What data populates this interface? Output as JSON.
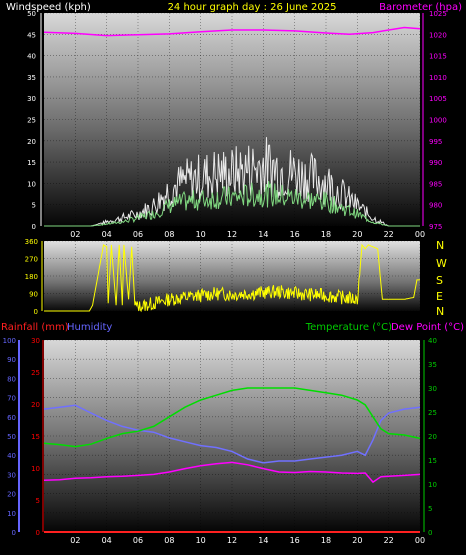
{
  "header": {
    "windspeed_label": "Windspeed (kph)",
    "title": "24 hour graph day : 26 June 2025",
    "barometer_label": "Barometer (hpa)"
  },
  "direction_labels": [
    "N",
    "W",
    "S",
    "E",
    "N"
  ],
  "bottom_header": {
    "rainfall_label": "Rainfall (mm)",
    "humidity_label": "Humidity",
    "temperature_label": "Temperature (°C)",
    "dewpoint_label": "Dew Point (°C)"
  },
  "colors": {
    "wind_gust": "#e8e8e8",
    "wind_avg": "#80d880",
    "barometer": "#ff00ff",
    "direction": "#ffff00",
    "rainfall": "#ff2020",
    "humidity": "#7070ff",
    "temperature": "#00dd00",
    "dewpoint": "#ff00ff",
    "rain_axis": "#ff0000",
    "humidity_axis": "#6666ff",
    "temp_axis": "#00cc00"
  },
  "chart_data": [
    {
      "type": "area",
      "id": "wind_baro",
      "title": "24 hour graph day : 26 June 2025",
      "x_ticks": [
        "02",
        "04",
        "06",
        "08",
        "10",
        "12",
        "14",
        "16",
        "18",
        "20",
        "22",
        "00"
      ],
      "y_left": {
        "label": "Windspeed (kph)",
        "ticks": [
          0,
          5,
          10,
          15,
          20,
          25,
          30,
          35,
          40,
          45,
          50
        ],
        "range": [
          0,
          50
        ]
      },
      "y_right": {
        "label": "Barometer (hpa)",
        "ticks": [
          975,
          980,
          985,
          990,
          995,
          1000,
          1005,
          1010,
          1015,
          1020,
          1025
        ],
        "range": [
          975,
          1025
        ]
      },
      "series": [
        {
          "name": "Wind gust",
          "x": [
            0,
            3,
            4,
            5,
            6,
            7,
            8,
            9,
            10,
            11,
            12,
            13,
            14,
            15,
            16,
            17,
            18,
            19,
            20,
            21,
            22,
            24
          ],
          "y": [
            0,
            0,
            1,
            2,
            3,
            5,
            9,
            11,
            12,
            13,
            13,
            14,
            15,
            14,
            13,
            12,
            11,
            8,
            5,
            2,
            0,
            0
          ]
        },
        {
          "name": "Wind average",
          "x": [
            0,
            3,
            4,
            5,
            6,
            7,
            8,
            9,
            10,
            11,
            12,
            13,
            14,
            15,
            16,
            17,
            18,
            19,
            20,
            21,
            22,
            24
          ],
          "y": [
            0,
            0,
            0.5,
            1,
            2,
            3,
            5,
            6,
            6.5,
            7,
            7,
            7.5,
            8,
            7.5,
            7,
            6.5,
            6,
            4.5,
            3,
            1,
            0,
            0
          ]
        },
        {
          "name": "Barometer",
          "x": [
            0,
            2,
            4,
            6,
            8,
            10,
            12,
            14,
            16,
            18,
            19.5,
            21,
            22,
            23,
            24
          ],
          "y": [
            1020.5,
            1020.2,
            1019.7,
            1019.9,
            1020.1,
            1020.6,
            1021.0,
            1021.0,
            1020.8,
            1020.3,
            1020.0,
            1020.4,
            1021.0,
            1021.6,
            1021.3
          ]
        }
      ]
    },
    {
      "type": "line",
      "id": "direction",
      "x_ticks": [
        "02",
        "04",
        "06",
        "08",
        "10",
        "12",
        "14",
        "16",
        "18",
        "20",
        "22",
        "00"
      ],
      "y_ticks": [
        0,
        90,
        180,
        270,
        360
      ],
      "y_range": [
        0,
        360
      ],
      "series": [
        {
          "name": "Wind direction",
          "x": [
            0,
            1,
            2,
            2.9,
            3.1,
            3.8,
            4.0,
            4.1,
            4.3,
            4.6,
            4.8,
            5.0,
            5.1,
            5.4,
            5.6,
            5.8,
            6.0,
            7.0,
            8.0,
            9.0,
            10.0,
            11.0,
            12.0,
            13.0,
            14.0,
            15.0,
            16.0,
            17.0,
            18.0,
            19.0,
            20.0,
            20.3,
            20.5,
            20.7,
            21.0,
            21.3,
            21.6,
            22.0,
            23.0,
            23.6,
            23.8,
            24.0
          ],
          "y": [
            0,
            0,
            0,
            0,
            30,
            340,
            330,
            40,
            340,
            30,
            340,
            30,
            340,
            60,
            330,
            30,
            20,
            40,
            60,
            70,
            80,
            90,
            85,
            90,
            95,
            100,
            90,
            85,
            80,
            70,
            60,
            340,
            320,
            340,
            330,
            320,
            60,
            60,
            60,
            70,
            160,
            160
          ]
        }
      ]
    },
    {
      "type": "line",
      "id": "temp_hum_rain",
      "x_ticks": [
        "02",
        "04",
        "06",
        "08",
        "10",
        "12",
        "14",
        "16",
        "18",
        "20",
        "22",
        "00"
      ],
      "y_left_outer": {
        "label": "Humidity",
        "ticks": [
          0,
          10,
          20,
          30,
          40,
          50,
          60,
          70,
          80,
          90,
          100
        ],
        "range": [
          0,
          100
        ]
      },
      "y_left_inner": {
        "label": "Rainfall (mm)",
        "ticks": [
          0,
          5,
          10,
          15,
          20,
          25,
          30
        ],
        "range": [
          0,
          30
        ]
      },
      "y_right": {
        "label": "Temperature (°C)",
        "ticks": [
          0,
          5,
          10,
          15,
          20,
          25,
          30,
          35,
          40
        ],
        "range": [
          0,
          40
        ]
      },
      "series": [
        {
          "name": "Humidity",
          "x": [
            0,
            1,
            2,
            3,
            4,
            5,
            6,
            7,
            8,
            9,
            10,
            11,
            12,
            13,
            14,
            15,
            16,
            17,
            18,
            19,
            20,
            20.5,
            21,
            21.5,
            22,
            23,
            24
          ],
          "y": [
            64,
            65,
            66,
            62,
            58,
            55,
            53,
            52,
            49,
            47,
            45,
            44,
            42,
            38,
            36,
            37,
            37,
            38,
            39,
            40,
            42,
            40,
            48,
            58,
            62,
            64,
            65
          ]
        },
        {
          "name": "Temperature",
          "x": [
            0,
            1,
            2,
            3,
            4,
            5,
            6,
            7,
            8,
            9,
            10,
            11,
            12,
            13,
            14,
            15,
            16,
            17,
            18,
            19,
            20,
            20.5,
            21,
            21.5,
            22,
            23,
            24
          ],
          "y": [
            18.5,
            18.2,
            17.8,
            18.3,
            19.5,
            20.5,
            21.0,
            22.0,
            24.0,
            26.0,
            27.5,
            28.5,
            29.5,
            30.0,
            30.0,
            30.0,
            30.0,
            29.5,
            29.0,
            28.5,
            27.5,
            26.5,
            24.0,
            21.5,
            20.5,
            20.2,
            19.5
          ]
        },
        {
          "name": "Dew Point",
          "x": [
            0,
            1,
            2,
            3,
            4,
            5,
            6,
            7,
            8,
            9,
            10,
            11,
            12,
            13,
            14,
            15,
            16,
            17,
            18,
            19,
            20,
            20.5,
            21,
            21.5,
            22,
            23,
            24
          ],
          "y": [
            10.8,
            10.9,
            11.2,
            11.3,
            11.5,
            11.6,
            11.8,
            12.0,
            12.5,
            13.2,
            13.8,
            14.2,
            14.5,
            14.0,
            13.2,
            12.5,
            12.4,
            12.6,
            12.5,
            12.3,
            12.2,
            12.3,
            10.4,
            11.5,
            11.6,
            11.8,
            12.0
          ]
        },
        {
          "name": "Rainfall",
          "x": [
            0,
            24
          ],
          "y": [
            0,
            0
          ]
        }
      ]
    }
  ]
}
